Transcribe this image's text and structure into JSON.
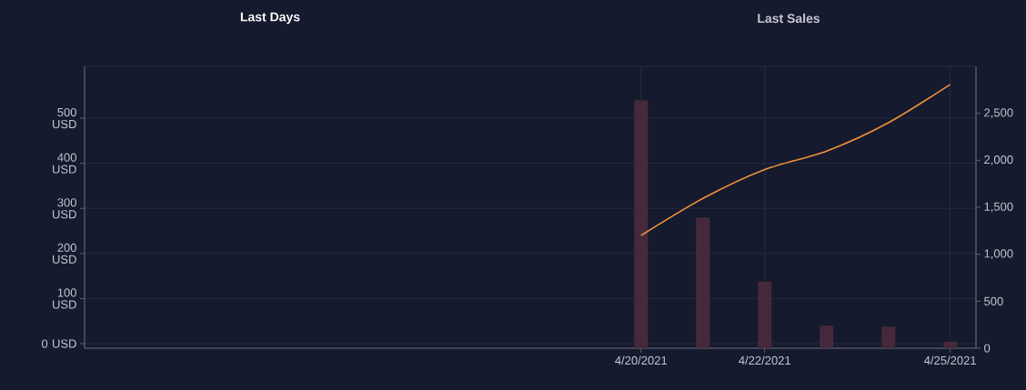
{
  "chart_data": {
    "type": "bar",
    "annotations": [
      "Last Days",
      "Last Sales"
    ],
    "x": [
      "2021-04-20",
      "2021-04-21",
      "2021-04-22",
      "2021-04-23",
      "2021-04-24",
      "2021-04-25"
    ],
    "xlim": [
      "2021-04-11",
      "2021-04-25T10:00"
    ],
    "xticks": [
      {
        "value": "2021-04-20",
        "label": "4/20/2021"
      },
      {
        "value": "2021-04-22",
        "label": "4/22/2021"
      },
      {
        "value": "2021-04-25",
        "label": "4/25/2021"
      }
    ],
    "ylim": [
      -10,
      615
    ],
    "yticks": [
      {
        "value": 0,
        "label": "0 USD"
      },
      {
        "value": 100,
        "label": "100 USD"
      },
      {
        "value": 200,
        "label": "200 USD"
      },
      {
        "value": 300,
        "label": "300 USD"
      },
      {
        "value": 400,
        "label": "400 USD"
      },
      {
        "value": 500,
        "label": "500 USD"
      }
    ],
    "y2lim": [
      0,
      3000
    ],
    "y2ticks": [
      0,
      500,
      {
        "value": 1000,
        "label": "1,000"
      },
      {
        "value": 1500,
        "label": "1,500"
      },
      {
        "value": 2000,
        "label": "2,000"
      },
      {
        "value": 2500,
        "label": "2,500"
      }
    ],
    "grid": true,
    "series": [
      {
        "axis": "y2",
        "color": "#45293b",
        "values": [
          2640,
          1390,
          710,
          240,
          230,
          70
        ]
      },
      {
        "type": "line",
        "axis": "y",
        "color": "#f0923a",
        "values": [
          240,
          322,
          386,
          427,
          490,
          575
        ]
      }
    ]
  }
}
